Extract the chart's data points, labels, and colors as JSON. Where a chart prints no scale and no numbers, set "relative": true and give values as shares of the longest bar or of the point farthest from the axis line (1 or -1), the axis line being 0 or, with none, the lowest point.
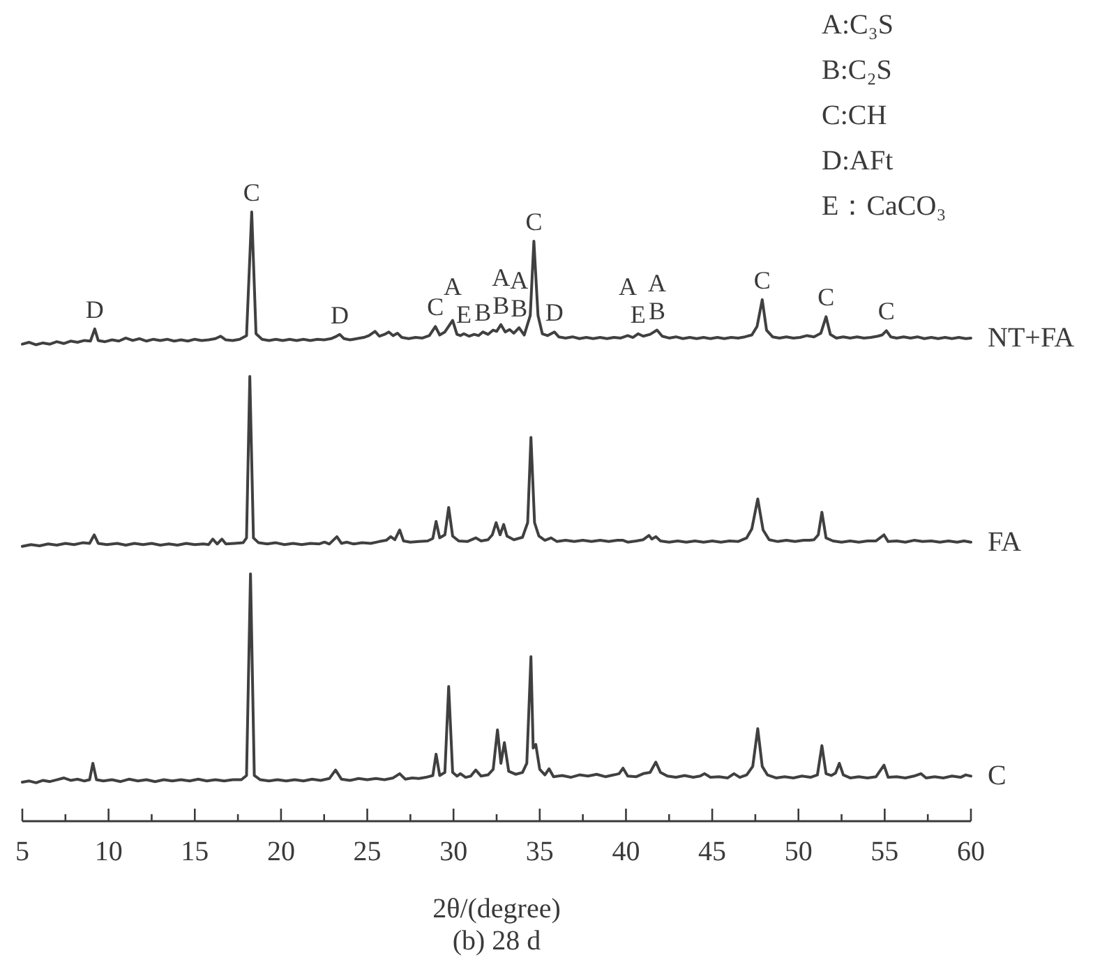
{
  "chart_data": {
    "type": "line",
    "title": "(b) 28 d",
    "xlabel": "2θ/(degree)",
    "relative": true,
    "xlim": [
      5,
      60
    ],
    "xticks": [
      5,
      {
        "value": 7.5,
        "label": null
      },
      10,
      {
        "value": 12.5,
        "label": null
      },
      15,
      {
        "value": 17.5,
        "label": null
      },
      20,
      {
        "value": 22.5,
        "label": null
      },
      25,
      {
        "value": 27.5,
        "label": null
      },
      30,
      {
        "value": 32.5,
        "label": null
      },
      35,
      {
        "value": 37.5,
        "label": null
      },
      40,
      {
        "value": 42.5,
        "label": null
      },
      45,
      {
        "value": 47.5,
        "label": null
      },
      50,
      {
        "value": 52.5,
        "label": null
      },
      55,
      {
        "value": 57.5,
        "label": null
      },
      60
    ],
    "series": [
      {
        "name": "NT+FA",
        "color": "#404040",
        "x": [
          5.0,
          5.4,
          5.8,
          6.2,
          6.6,
          7.0,
          7.4,
          7.8,
          8.2,
          8.6,
          8.95,
          9.2,
          9.4,
          9.8,
          10.2,
          10.6,
          11.0,
          11.4,
          11.8,
          12.2,
          12.6,
          13.0,
          13.4,
          13.8,
          14.2,
          14.6,
          15.0,
          15.4,
          15.8,
          16.2,
          16.5,
          16.8,
          17.2,
          17.6,
          18.0,
          18.3,
          18.55,
          18.9,
          19.3,
          19.7,
          20.1,
          20.5,
          20.9,
          21.3,
          21.7,
          22.1,
          22.5,
          22.9,
          23.15,
          23.4,
          23.65,
          24.0,
          24.4,
          24.8,
          25.1,
          25.45,
          25.7,
          26.0,
          26.25,
          26.5,
          26.75,
          27.0,
          27.4,
          27.8,
          28.2,
          28.6,
          28.95,
          29.2,
          29.5,
          29.95,
          30.2,
          30.4,
          30.6,
          30.9,
          31.2,
          31.45,
          31.7,
          32.0,
          32.3,
          32.5,
          32.75,
          33.0,
          33.25,
          33.5,
          33.8,
          34.1,
          34.45,
          34.66,
          34.9,
          35.15,
          35.45,
          35.85,
          36.1,
          36.5,
          36.9,
          37.3,
          37.7,
          38.1,
          38.5,
          38.9,
          39.3,
          39.7,
          40.1,
          40.4,
          40.7,
          41.0,
          41.4,
          41.8,
          42.1,
          42.5,
          42.9,
          43.3,
          43.7,
          44.1,
          44.5,
          44.9,
          45.3,
          45.7,
          46.1,
          46.5,
          46.9,
          47.3,
          47.6,
          47.9,
          48.15,
          48.5,
          48.9,
          49.3,
          49.7,
          50.1,
          50.5,
          50.9,
          51.3,
          51.6,
          51.85,
          52.2,
          52.6,
          53.0,
          53.4,
          53.8,
          54.2,
          54.6,
          54.85,
          55.1,
          55.35,
          55.7,
          56.1,
          56.5,
          56.9,
          57.3,
          57.7,
          58.1,
          58.5,
          58.9,
          59.3,
          59.7,
          60.0
        ],
        "values": [
          0.783,
          0.786,
          0.782,
          0.785,
          0.783,
          0.787,
          0.784,
          0.788,
          0.786,
          0.789,
          0.788,
          0.808,
          0.789,
          0.787,
          0.79,
          0.788,
          0.793,
          0.789,
          0.792,
          0.788,
          0.791,
          0.789,
          0.791,
          0.788,
          0.79,
          0.788,
          0.791,
          0.789,
          0.79,
          0.792,
          0.796,
          0.79,
          0.789,
          0.791,
          0.797,
          1.0,
          0.8,
          0.791,
          0.789,
          0.791,
          0.789,
          0.791,
          0.789,
          0.791,
          0.789,
          0.791,
          0.79,
          0.792,
          0.795,
          0.799,
          0.792,
          0.79,
          0.792,
          0.794,
          0.797,
          0.804,
          0.796,
          0.799,
          0.803,
          0.797,
          0.801,
          0.794,
          0.792,
          0.794,
          0.793,
          0.797,
          0.812,
          0.798,
          0.803,
          0.822,
          0.799,
          0.797,
          0.8,
          0.796,
          0.799,
          0.797,
          0.803,
          0.799,
          0.806,
          0.804,
          0.815,
          0.803,
          0.807,
          0.801,
          0.81,
          0.798,
          0.83,
          0.952,
          0.83,
          0.8,
          0.797,
          0.803,
          0.795,
          0.793,
          0.795,
          0.792,
          0.794,
          0.792,
          0.794,
          0.792,
          0.794,
          0.793,
          0.797,
          0.794,
          0.8,
          0.796,
          0.799,
          0.806,
          0.796,
          0.793,
          0.795,
          0.792,
          0.794,
          0.792,
          0.794,
          0.792,
          0.794,
          0.792,
          0.794,
          0.793,
          0.795,
          0.798,
          0.812,
          0.856,
          0.806,
          0.795,
          0.793,
          0.795,
          0.793,
          0.794,
          0.797,
          0.795,
          0.801,
          0.828,
          0.799,
          0.793,
          0.795,
          0.793,
          0.795,
          0.793,
          0.794,
          0.796,
          0.798,
          0.805,
          0.795,
          0.793,
          0.795,
          0.793,
          0.795,
          0.792,
          0.794,
          0.792,
          0.794,
          0.792,
          0.794,
          0.792,
          0.793
        ]
      },
      {
        "name": "FA",
        "color": "#404040",
        "x": [
          5.0,
          5.5,
          6.0,
          6.5,
          7.0,
          7.5,
          8.0,
          8.5,
          8.9,
          9.17,
          9.4,
          9.9,
          10.5,
          11.0,
          11.5,
          12.0,
          12.5,
          13.0,
          13.5,
          14.0,
          14.5,
          15.0,
          15.5,
          15.8,
          16.04,
          16.3,
          16.57,
          16.8,
          17.3,
          17.8,
          18.0,
          18.19,
          18.4,
          18.7,
          19.2,
          19.7,
          20.2,
          20.7,
          21.2,
          21.7,
          22.2,
          22.52,
          22.8,
          23.24,
          23.5,
          23.81,
          24.2,
          24.7,
          25.2,
          25.7,
          26.1,
          26.36,
          26.6,
          26.88,
          27.1,
          27.5,
          28.0,
          28.5,
          28.8,
          28.99,
          29.2,
          29.5,
          29.72,
          29.95,
          30.3,
          30.8,
          31.29,
          31.6,
          32.0,
          32.25,
          32.47,
          32.7,
          32.91,
          33.1,
          33.5,
          34.0,
          34.3,
          34.49,
          34.7,
          34.95,
          35.3,
          35.66,
          36.0,
          36.5,
          37.0,
          37.5,
          38.0,
          38.5,
          39.0,
          39.5,
          39.83,
          40.1,
          40.6,
          41.0,
          41.33,
          41.5,
          41.73,
          42.0,
          42.5,
          43.0,
          43.5,
          44.0,
          44.5,
          45.0,
          45.5,
          46.0,
          46.5,
          47.0,
          47.3,
          47.64,
          47.95,
          48.3,
          48.8,
          49.3,
          49.8,
          50.3,
          50.64,
          50.9,
          51.15,
          51.36,
          51.6,
          52.0,
          52.5,
          53.0,
          53.5,
          54.0,
          54.5,
          54.96,
          55.2,
          55.7,
          56.2,
          56.7,
          57.2,
          57.7,
          58.2,
          58.7,
          59.2,
          59.6,
          60.0
        ],
        "values": [
          0.451,
          0.454,
          0.452,
          0.455,
          0.453,
          0.456,
          0.454,
          0.457,
          0.456,
          0.47,
          0.456,
          0.454,
          0.456,
          0.453,
          0.456,
          0.454,
          0.456,
          0.453,
          0.455,
          0.453,
          0.456,
          0.454,
          0.455,
          0.454,
          0.463,
          0.455,
          0.463,
          0.455,
          0.456,
          0.457,
          0.465,
          0.73,
          0.465,
          0.457,
          0.455,
          0.457,
          0.454,
          0.456,
          0.454,
          0.456,
          0.455,
          0.458,
          0.455,
          0.467,
          0.456,
          0.458,
          0.455,
          0.457,
          0.456,
          0.459,
          0.461,
          0.467,
          0.462,
          0.478,
          0.46,
          0.458,
          0.459,
          0.46,
          0.464,
          0.492,
          0.465,
          0.47,
          0.515,
          0.468,
          0.46,
          0.459,
          0.465,
          0.46,
          0.462,
          0.47,
          0.49,
          0.47,
          0.487,
          0.468,
          0.462,
          0.466,
          0.49,
          0.63,
          0.49,
          0.468,
          0.461,
          0.465,
          0.459,
          0.461,
          0.459,
          0.461,
          0.459,
          0.461,
          0.459,
          0.461,
          0.461,
          0.458,
          0.46,
          0.462,
          0.469,
          0.463,
          0.467,
          0.46,
          0.458,
          0.46,
          0.458,
          0.46,
          0.458,
          0.46,
          0.458,
          0.46,
          0.459,
          0.465,
          0.48,
          0.529,
          0.478,
          0.462,
          0.459,
          0.461,
          0.459,
          0.461,
          0.461,
          0.462,
          0.47,
          0.507,
          0.465,
          0.46,
          0.458,
          0.46,
          0.458,
          0.46,
          0.46,
          0.47,
          0.459,
          0.46,
          0.458,
          0.461,
          0.459,
          0.46,
          0.458,
          0.46,
          0.458,
          0.46,
          0.458
        ]
      },
      {
        "name": "C",
        "color": "#404040",
        "x": [
          5.0,
          5.4,
          5.8,
          6.2,
          6.6,
          7.0,
          7.4,
          7.8,
          8.2,
          8.6,
          8.9,
          9.09,
          9.3,
          9.7,
          10.2,
          10.7,
          11.2,
          11.7,
          12.2,
          12.7,
          13.2,
          13.7,
          14.2,
          14.7,
          15.2,
          15.7,
          16.2,
          16.7,
          17.2,
          17.7,
          18.0,
          18.23,
          18.45,
          18.8,
          19.3,
          19.8,
          20.3,
          20.8,
          21.3,
          21.8,
          22.3,
          22.8,
          23.16,
          23.5,
          24.0,
          24.5,
          25.0,
          25.5,
          26.0,
          26.5,
          26.88,
          27.2,
          27.6,
          28.0,
          28.4,
          28.8,
          28.99,
          29.2,
          29.5,
          29.72,
          29.95,
          30.2,
          30.4,
          30.7,
          31.0,
          31.29,
          31.6,
          32.0,
          32.3,
          32.55,
          32.75,
          32.95,
          33.2,
          33.6,
          34.0,
          34.25,
          34.49,
          34.62,
          34.77,
          35.0,
          35.3,
          35.54,
          35.8,
          36.3,
          36.8,
          37.3,
          37.8,
          38.3,
          38.8,
          39.3,
          39.6,
          39.83,
          40.1,
          40.6,
          41.0,
          41.4,
          41.73,
          42.0,
          42.4,
          42.9,
          43.4,
          43.9,
          44.3,
          44.56,
          44.9,
          45.4,
          45.9,
          46.26,
          46.6,
          47.0,
          47.35,
          47.64,
          47.9,
          48.2,
          48.7,
          49.2,
          49.7,
          50.2,
          50.7,
          51.1,
          51.36,
          51.6,
          51.9,
          52.15,
          52.37,
          52.6,
          53.0,
          53.5,
          54.0,
          54.5,
          54.96,
          55.2,
          55.7,
          56.2,
          56.7,
          57.1,
          57.4,
          57.9,
          58.4,
          58.9,
          59.4,
          59.7,
          60.0
        ],
        "values": [
          0.064,
          0.066,
          0.063,
          0.067,
          0.065,
          0.068,
          0.071,
          0.067,
          0.069,
          0.066,
          0.068,
          0.095,
          0.068,
          0.066,
          0.068,
          0.065,
          0.069,
          0.066,
          0.068,
          0.065,
          0.068,
          0.066,
          0.068,
          0.066,
          0.069,
          0.066,
          0.068,
          0.066,
          0.068,
          0.068,
          0.075,
          0.406,
          0.075,
          0.068,
          0.066,
          0.068,
          0.066,
          0.068,
          0.066,
          0.069,
          0.067,
          0.07,
          0.084,
          0.069,
          0.067,
          0.07,
          0.068,
          0.07,
          0.068,
          0.071,
          0.078,
          0.069,
          0.071,
          0.07,
          0.072,
          0.075,
          0.11,
          0.075,
          0.08,
          0.221,
          0.08,
          0.074,
          0.078,
          0.072,
          0.074,
          0.084,
          0.074,
          0.076,
          0.085,
          0.15,
          0.095,
          0.129,
          0.082,
          0.077,
          0.08,
          0.095,
          0.27,
          0.12,
          0.126,
          0.085,
          0.076,
          0.086,
          0.073,
          0.075,
          0.072,
          0.076,
          0.074,
          0.077,
          0.073,
          0.076,
          0.078,
          0.087,
          0.074,
          0.073,
          0.078,
          0.08,
          0.097,
          0.08,
          0.074,
          0.072,
          0.075,
          0.072,
          0.074,
          0.078,
          0.072,
          0.073,
          0.071,
          0.078,
          0.072,
          0.076,
          0.09,
          0.152,
          0.09,
          0.076,
          0.071,
          0.073,
          0.071,
          0.074,
          0.072,
          0.076,
          0.124,
          0.078,
          0.075,
          0.079,
          0.095,
          0.076,
          0.071,
          0.073,
          0.071,
          0.073,
          0.092,
          0.072,
          0.073,
          0.071,
          0.074,
          0.078,
          0.071,
          0.073,
          0.071,
          0.074,
          0.072,
          0.076,
          0.074
        ]
      }
    ],
    "annotations": [
      "A:C₃S",
      "B:C₂S",
      "C:CH",
      "D:AFt",
      "E：CaCO₃",
      {
        "text": "D",
        "x": 9.2,
        "y": 0.808
      },
      {
        "text": "C",
        "x": 18.3,
        "y": 1.0
      },
      {
        "text": "D",
        "x": 23.4,
        "y": 0.799
      },
      {
        "text": "C",
        "x": 28.95,
        "y": 0.812
      },
      {
        "text": "E",
        "x": 30.6,
        "y": 0.8
      },
      {
        "text": "B",
        "x": 31.7,
        "y": 0.803
      },
      {
        "text": "B",
        "x": 32.75,
        "y": 0.815
      },
      {
        "text": "A",
        "x": 32.75,
        "y": 0.815
      },
      {
        "text": "B",
        "x": 33.8,
        "y": 0.81
      },
      {
        "text": "A",
        "x": 33.8,
        "y": 0.81
      },
      {
        "text": "A",
        "x": 29.95,
        "y": 0.822
      },
      {
        "text": "C",
        "x": 34.66,
        "y": 0.952
      },
      {
        "text": "D",
        "x": 35.85,
        "y": 0.803
      },
      {
        "text": "E",
        "x": 40.7,
        "y": 0.8
      },
      {
        "text": "A",
        "x": 40.1,
        "y": 0.797
      },
      {
        "text": "B",
        "x": 41.8,
        "y": 0.806
      },
      {
        "text": "A",
        "x": 41.8,
        "y": 0.806
      },
      {
        "text": "C",
        "x": 47.9,
        "y": 0.856
      },
      {
        "text": "C",
        "x": 51.6,
        "y": 0.828
      },
      {
        "text": "C",
        "x": 55.1,
        "y": 0.805
      }
    ]
  }
}
